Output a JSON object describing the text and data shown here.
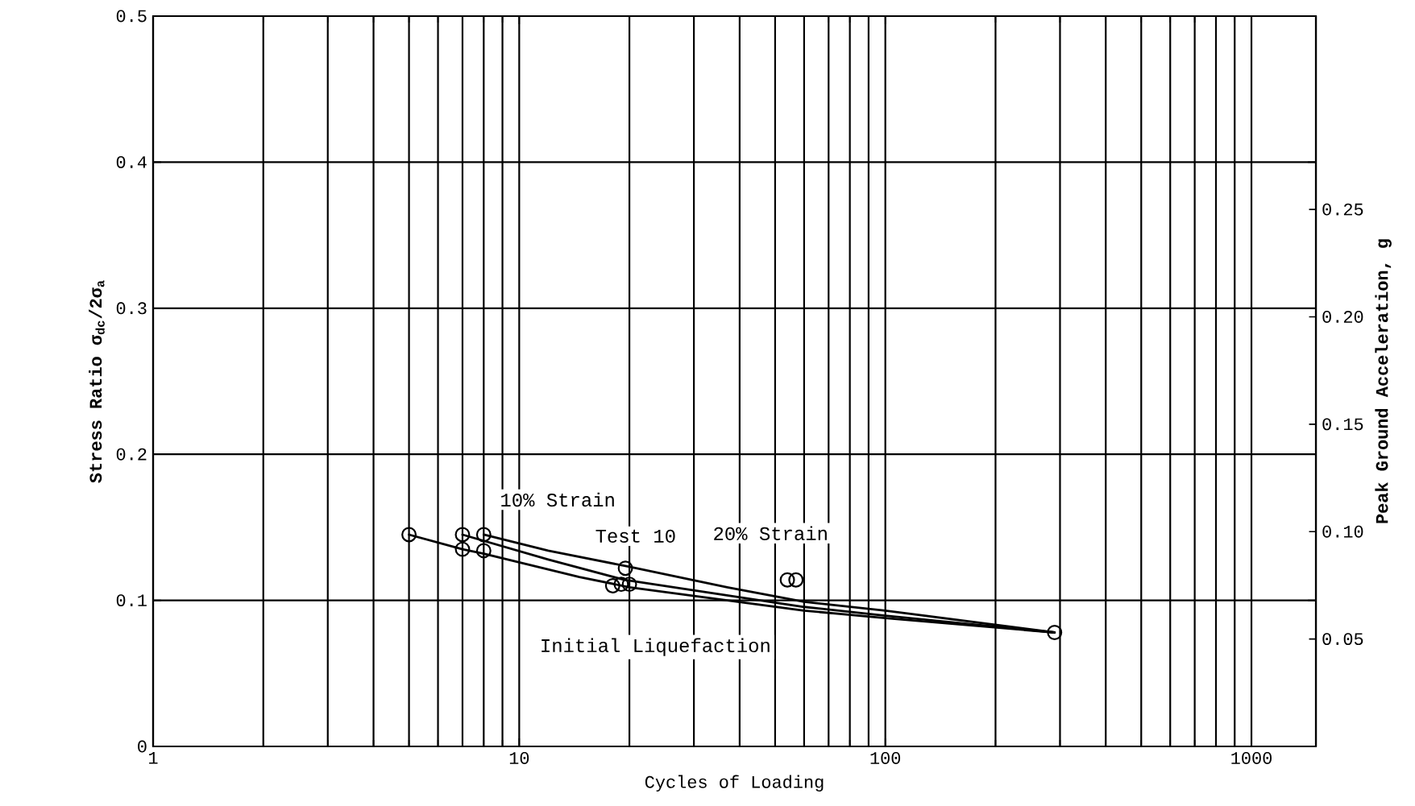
{
  "chart_data": {
    "type": "line",
    "xlabel": "Cycles of Loading",
    "ylabel": "Stress Ratio σ$_{dc}$/2σ$_{a}$",
    "y2label": "Peak Ground Acceleration, g",
    "log": "x",
    "grid": true,
    "xlim": [
      1,
      1500
    ],
    "xticks": [
      1,
      10,
      100,
      1000
    ],
    "ylim": [
      0,
      0.5
    ],
    "yticks": [
      0,
      0.1,
      0.2,
      0.3,
      0.4,
      0.5
    ],
    "y2lim": [
      0,
      0.34
    ],
    "y2ticks": [
      {
        "value": 0.05,
        "label": "0.05"
      },
      {
        "value": 0.1,
        "label": "0.10"
      },
      {
        "value": 0.15,
        "label": "0.15"
      },
      {
        "value": 0.2,
        "label": "0.20"
      },
      {
        "value": 0.25,
        "label": "0.25"
      }
    ],
    "series": [
      {
        "color": "#000000",
        "marker": "none",
        "x": [
          8,
          12,
          20,
          37,
          60,
          100,
          290
        ],
        "values": [
          0.145,
          0.134,
          0.123,
          0.109,
          0.099,
          0.093,
          0.078
        ]
      },
      {
        "color": "#000000",
        "marker": "none",
        "x": [
          7,
          12,
          19.4,
          60,
          100,
          290
        ],
        "values": [
          0.145,
          0.128,
          0.114,
          0.0955,
          0.0895,
          0.078
        ]
      },
      {
        "color": "#000000",
        "marker": "none",
        "x": [
          5,
          7,
          8,
          14.6,
          20,
          60,
          100,
          290
        ],
        "values": [
          0.145,
          0.135,
          0.132,
          0.116,
          0.109,
          0.093,
          0.0878,
          0.078
        ]
      },
      {
        "type": "scatter",
        "color": "#000000",
        "marker": "circle",
        "x": [
          5,
          7,
          7,
          8,
          8,
          18,
          19,
          20,
          19.5,
          54,
          57,
          290
        ],
        "values": [
          0.145,
          0.145,
          0.135,
          0.145,
          0.134,
          0.11,
          0.111,
          0.111,
          0.122,
          0.114,
          0.114,
          0.078
        ]
      }
    ],
    "annotations": [
      "10% Strain",
      "Test 10",
      "20% Strain",
      "Initial Liquefaction"
    ]
  }
}
